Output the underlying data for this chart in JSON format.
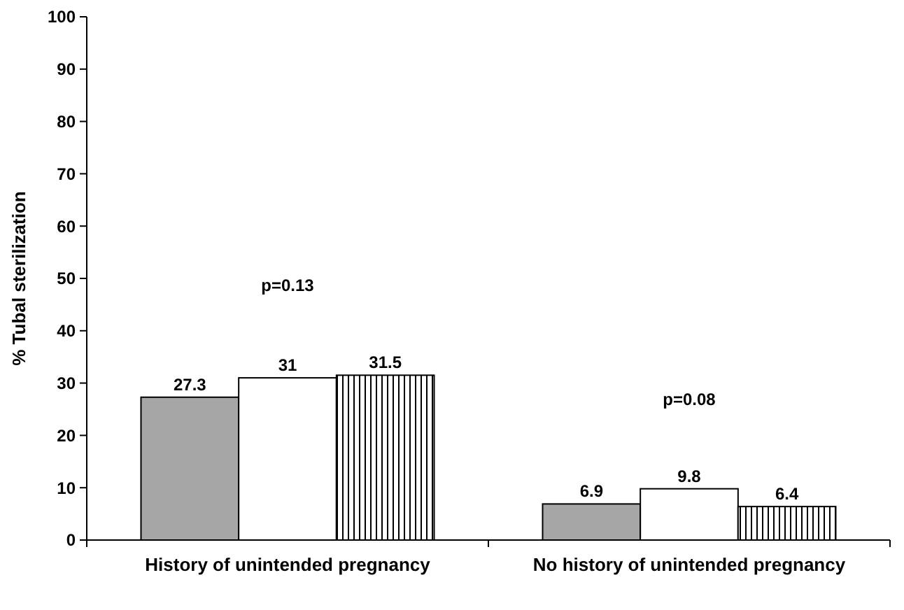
{
  "chart_data": {
    "type": "bar",
    "ylabel": "% Tubal sterilization",
    "categories": [
      "History of unintended pregnancy",
      "No history of unintended pregnancy"
    ],
    "series": [
      {
        "color": "#a6a6a6",
        "values": [
          27.3,
          6.9
        ]
      },
      {
        "color": "#ffffff",
        "values": [
          31,
          9.8
        ]
      },
      {
        "color": "#000000",
        "values": [
          31.5,
          6.4
        ]
      }
    ],
    "ylim": [
      0,
      100
    ],
    "yticks": [
      0,
      10,
      20,
      30,
      40,
      50,
      60,
      70,
      80,
      90,
      100
    ],
    "data_labels": true,
    "grid": false,
    "annotations": [
      "p=0.13",
      "p=0.08"
    ]
  }
}
